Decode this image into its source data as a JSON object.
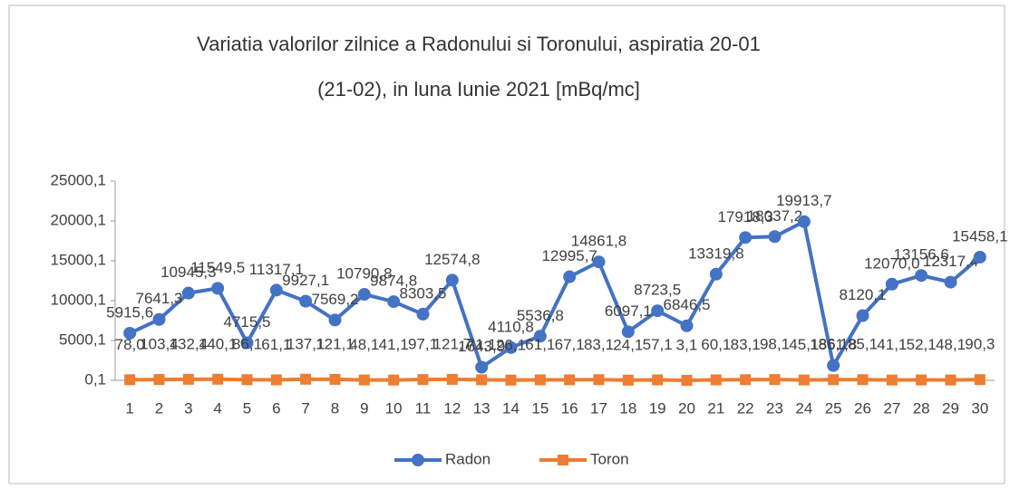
{
  "chart_data": {
    "type": "line",
    "title": "Variatia valorilor zilnice a Radonului si Toronului, aspiratia 20-01",
    "subtitle": "(21-02),  in luna Iunie 2021 [mBq/mc]",
    "categories": [
      "1",
      "2",
      "3",
      "4",
      "5",
      "6",
      "7",
      "8",
      "9",
      "10",
      "11",
      "12",
      "13",
      "14",
      "15",
      "16",
      "17",
      "18",
      "19",
      "20",
      "21",
      "22",
      "23",
      "24",
      "25",
      "26",
      "27",
      "28",
      "29",
      "30"
    ],
    "series": [
      {
        "name": "Radon",
        "color": "#4472c4",
        "marker": "circle",
        "values": [
          5915.6,
          7641.3,
          10945.3,
          11549.5,
          4715.5,
          11317.1,
          9927.1,
          7569.2,
          10790.8,
          9874.8,
          8303.5,
          12574.8,
          1643.9,
          4110.8,
          5536.8,
          12995.7,
          14861.8,
          6097.1,
          8723.5,
          6846.5,
          13319.8,
          17918.3,
          18037.2,
          19913.7,
          1861.8,
          8120.1,
          12070.0,
          13156.6,
          12317.4,
          15458.1
        ],
        "value_labels": [
          "5915,6",
          "7641,3",
          "10945,3",
          "11549,5",
          "4715,5",
          "11317,1",
          "9927,1",
          "7569,2",
          "10790,8",
          "9874,8",
          "8303,5",
          "12574,8",
          "1643,9",
          "4110,8",
          "5536,8",
          "12995,7",
          "14861,8",
          "6097,1",
          "8723,5",
          "6846,5",
          "13319,8",
          "17918,3",
          "18037,2",
          "19913,7",
          "1861,8",
          "8120,1",
          "12070,0",
          "13156,6",
          "12317,4",
          "15458,1"
        ]
      },
      {
        "name": "Toron",
        "color": "#ed7d31",
        "marker": "square",
        "values": [
          78.0,
          103.4,
          132.4,
          140.1,
          86.1,
          61.1,
          137.1,
          121.1,
          48.1,
          41.1,
          97.1,
          121.7,
          71.1,
          26.1,
          61.1,
          67.1,
          83.1,
          24.1,
          57.1,
          3.1,
          60.1,
          83.1,
          98.1,
          45.1,
          86.1,
          85.1,
          41.1,
          52.1,
          48.1,
          90.3
        ],
        "value_labels": [
          "78,0",
          "103,4",
          "132,4",
          "140,1",
          "86,1",
          "61,1",
          "137,1",
          "121,1",
          "48,1",
          "41,1",
          "97,1",
          "121,7",
          "71,1",
          "26,1",
          "61,1",
          "67,1",
          "83,1",
          "24,1",
          "57,1",
          "3,1",
          "60,1",
          "83,1",
          "98,1",
          "45,1",
          "86,1",
          "85,1",
          "41,1",
          "52,1",
          "48,1",
          "90,3"
        ]
      }
    ],
    "ylim": [
      0.1,
      25000.1
    ],
    "yticks": [
      {
        "value": 0.1,
        "label": "0,1"
      },
      {
        "value": 5000.1,
        "label": "5000,1"
      },
      {
        "value": 10000.1,
        "label": "10000,1"
      },
      {
        "value": 15000.1,
        "label": "15000,1"
      },
      {
        "value": 20000.1,
        "label": "20000,1"
      },
      {
        "value": 25000.1,
        "label": "25000,1"
      }
    ],
    "legend": "bottom"
  }
}
